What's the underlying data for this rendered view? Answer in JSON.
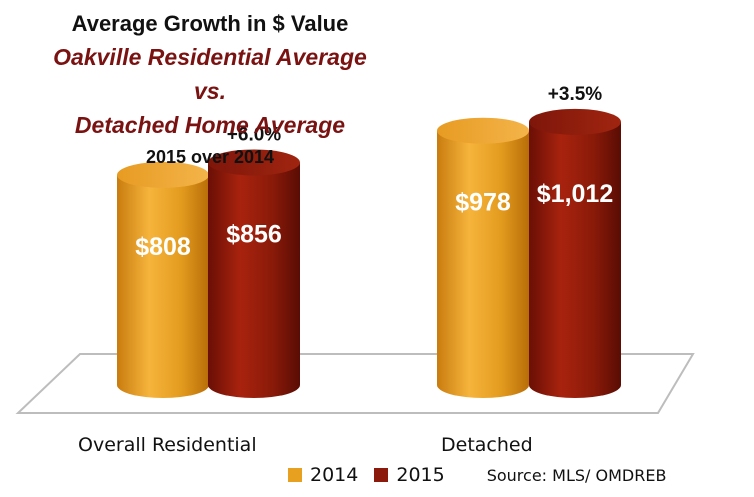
{
  "title": {
    "line1": "Average Growth in $ Value",
    "line2": "Oakville Residential Average vs.",
    "line3": "Detached Home Average",
    "line4": "2015 over 2014"
  },
  "colors": {
    "series_2014": "#e8a020",
    "series_2015": "#8c1a0c",
    "title_accent": "#7a1212"
  },
  "chart_data": {
    "type": "bar",
    "categories": [
      "Overall Residential",
      "Detached"
    ],
    "series": [
      {
        "name": "2014",
        "values": [
          808,
          978
        ],
        "labels": [
          "$808",
          "$978"
        ]
      },
      {
        "name": "2015",
        "values": [
          856,
          1012
        ],
        "labels": [
          "$856",
          "$1,012"
        ]
      }
    ],
    "growth_labels": [
      "+6.0%",
      "+3.5%"
    ],
    "units": "$ thousands",
    "legend_position": "bottom",
    "grid": false
  },
  "source": "Source: MLS/ OMDREB"
}
